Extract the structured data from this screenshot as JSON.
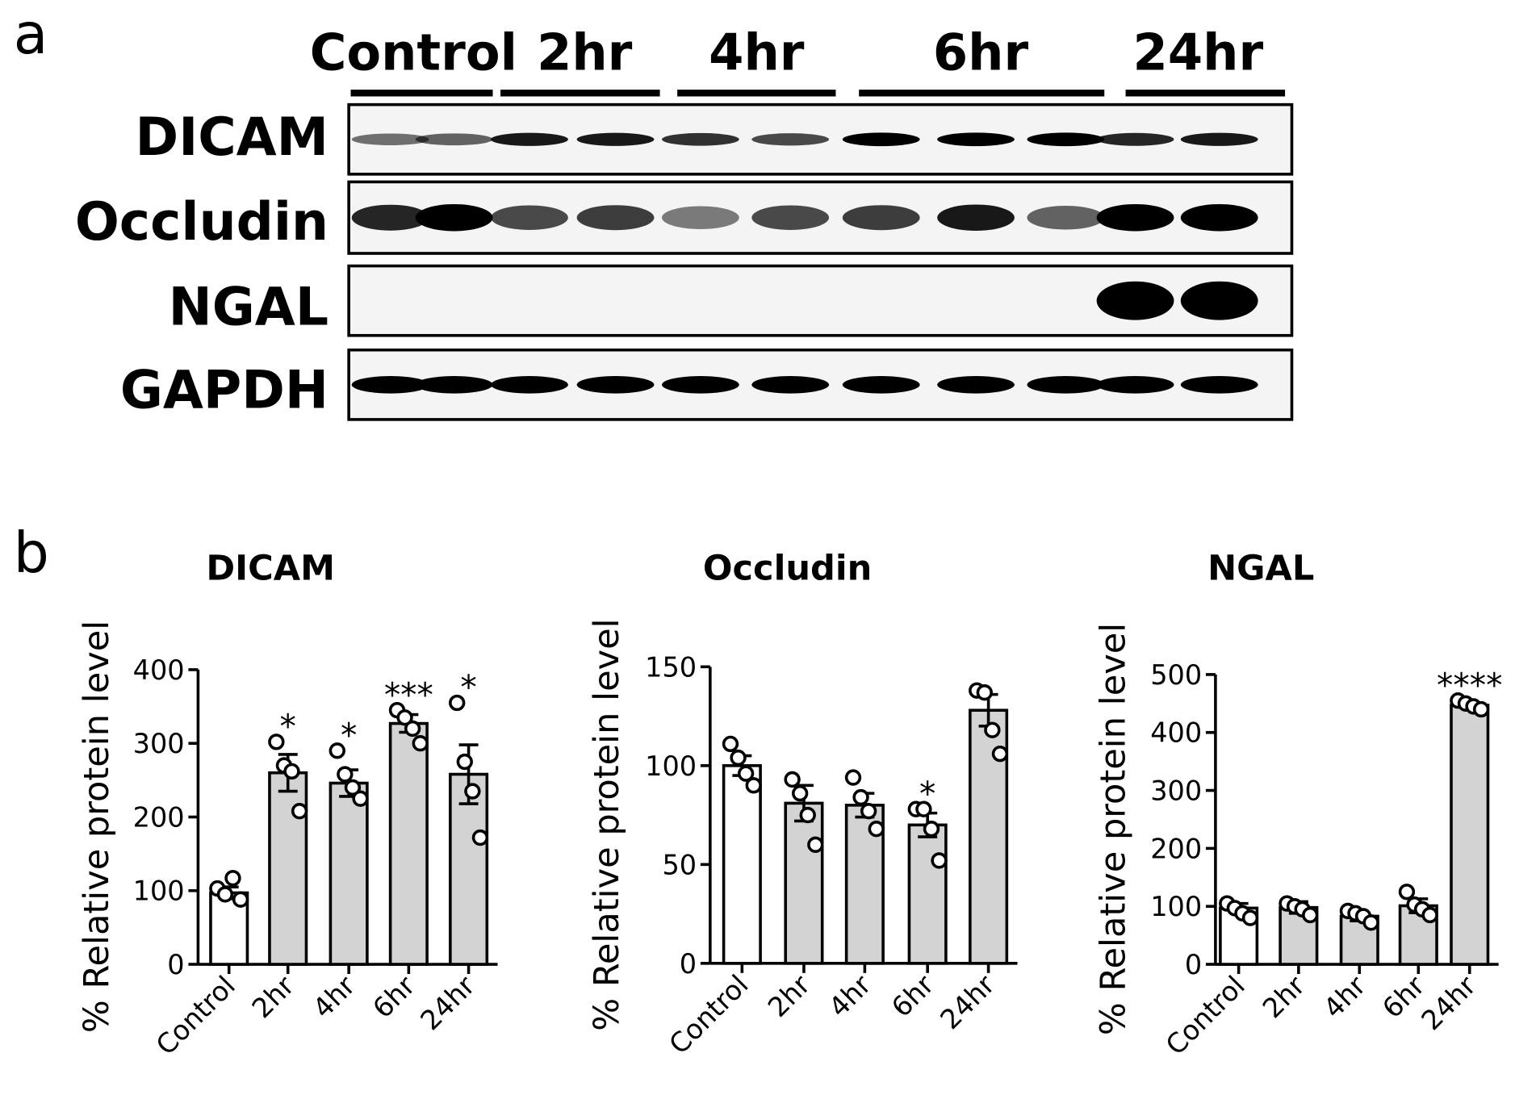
{
  "panel_labels": [
    "a",
    "b"
  ],
  "blot": {
    "lane_groups": [
      "Control",
      "2hr",
      "4hr",
      "6hr",
      "24hr"
    ],
    "rows": [
      "DICAM",
      "Occludin",
      "NGAL",
      "GAPDH"
    ]
  },
  "chart_data": [
    {
      "type": "bar",
      "title": "DICAM",
      "ylabel": "% Relative protein level",
      "categories": [
        "Control",
        "2hr",
        "4hr",
        "6hr",
        "24hr"
      ],
      "values": [
        97,
        260,
        246,
        327,
        258
      ],
      "errors": [
        8,
        25,
        18,
        12,
        40
      ],
      "points": [
        [
          103,
          95,
          117,
          88
        ],
        [
          302,
          270,
          262,
          208
        ],
        [
          290,
          258,
          240,
          225
        ],
        [
          345,
          335,
          320,
          300
        ],
        [
          355,
          275,
          235,
          172
        ]
      ],
      "annotations": [
        null,
        "*",
        "*",
        "***",
        "*"
      ],
      "colors": [
        "#ffffff",
        "#d3d3d3",
        "#d3d3d3",
        "#d3d3d3",
        "#d3d3d3"
      ],
      "ylim": [
        0,
        400
      ],
      "yticks": [
        0,
        100,
        200,
        300,
        400
      ]
    },
    {
      "type": "bar",
      "title": "Occludin",
      "ylabel": "% Relative protein level",
      "categories": [
        "Control",
        "2hr",
        "4hr",
        "6hr",
        "24hr"
      ],
      "values": [
        100,
        81,
        80,
        70,
        128
      ],
      "errors": [
        5,
        9,
        6,
        6,
        8
      ],
      "points": [
        [
          111,
          104,
          96,
          90
        ],
        [
          93,
          86,
          75,
          60
        ],
        [
          94,
          84,
          77,
          68
        ],
        [
          78,
          78,
          68,
          52
        ],
        [
          138,
          137,
          118,
          106
        ]
      ],
      "annotations": [
        null,
        null,
        null,
        "*",
        null
      ],
      "colors": [
        "#ffffff",
        "#d3d3d3",
        "#d3d3d3",
        "#d3d3d3",
        "#d3d3d3"
      ],
      "ylim": [
        0,
        150
      ],
      "yticks": [
        0,
        50,
        100,
        150
      ]
    },
    {
      "type": "bar",
      "title": "NGAL",
      "ylabel": "% Relative protein level",
      "categories": [
        "Control",
        "2hr",
        "4hr",
        "6hr",
        "24hr"
      ],
      "values": [
        97,
        98,
        83,
        101,
        447
      ],
      "errors": [
        8,
        10,
        8,
        12,
        5
      ],
      "points": [
        [
          105,
          97,
          88,
          80
        ],
        [
          105,
          100,
          95,
          85
        ],
        [
          92,
          88,
          83,
          72
        ],
        [
          125,
          103,
          95,
          85
        ],
        [
          455,
          450,
          445,
          440
        ]
      ],
      "annotations": [
        null,
        null,
        null,
        null,
        "****"
      ],
      "colors": [
        "#ffffff",
        "#d3d3d3",
        "#d3d3d3",
        "#d3d3d3",
        "#d3d3d3"
      ],
      "ylim": [
        0,
        500
      ],
      "yticks": [
        0,
        100,
        200,
        300,
        400,
        500
      ]
    }
  ]
}
